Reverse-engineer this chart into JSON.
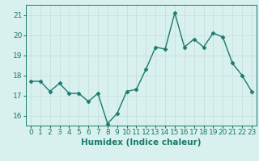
{
  "x": [
    0,
    1,
    2,
    3,
    4,
    5,
    6,
    7,
    8,
    9,
    10,
    11,
    12,
    13,
    14,
    15,
    16,
    17,
    18,
    19,
    20,
    21,
    22,
    23
  ],
  "y": [
    17.7,
    17.7,
    17.2,
    17.6,
    17.1,
    17.1,
    16.7,
    17.1,
    15.6,
    16.1,
    17.2,
    17.3,
    18.3,
    19.4,
    19.3,
    21.1,
    19.4,
    19.8,
    19.4,
    20.1,
    19.9,
    18.6,
    18.0,
    17.2
  ],
  "line_color": "#1a7a6e",
  "marker": "D",
  "marker_size": 2.5,
  "bg_color": "#d8f0ee",
  "grid_color": "#c8e0dd",
  "xlabel": "Humidex (Indice chaleur)",
  "xlim": [
    -0.5,
    23.5
  ],
  "ylim": [
    15.5,
    21.5
  ],
  "yticks": [
    16,
    17,
    18,
    19,
    20,
    21
  ],
  "xticks": [
    0,
    1,
    2,
    3,
    4,
    5,
    6,
    7,
    8,
    9,
    10,
    11,
    12,
    13,
    14,
    15,
    16,
    17,
    18,
    19,
    20,
    21,
    22,
    23
  ],
  "xlabel_fontsize": 7.5,
  "tick_fontsize": 6.5,
  "line_width": 1.0
}
